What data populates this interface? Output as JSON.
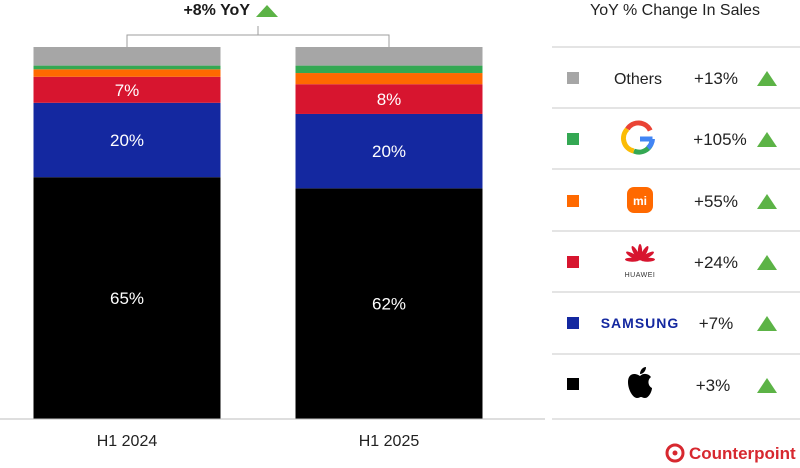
{
  "chart_data": {
    "type": "bar",
    "stacked": true,
    "categories": [
      "H1 2024",
      "H1 2025"
    ],
    "series": [
      {
        "name": "Apple",
        "color": "#000000",
        "values": [
          65,
          62
        ],
        "labels": [
          "65%",
          "62%"
        ]
      },
      {
        "name": "Samsung",
        "color": "#1428a0",
        "values": [
          20,
          20
        ],
        "labels": [
          "20%",
          "20%"
        ]
      },
      {
        "name": "Huawei",
        "color": "#d7152f",
        "values": [
          7,
          8
        ],
        "labels": [
          "7%",
          "8%"
        ]
      },
      {
        "name": "Xiaomi",
        "color": "#ff6900",
        "values": [
          2,
          3
        ],
        "labels": [
          "",
          ""
        ]
      },
      {
        "name": "Google",
        "color": "#34a853",
        "values": [
          1,
          2
        ],
        "labels": [
          "",
          ""
        ]
      },
      {
        "name": "Others",
        "color": "#a6a6a6",
        "values": [
          5,
          5
        ],
        "labels": [
          "",
          ""
        ]
      }
    ],
    "total_change": "+8% YoY",
    "ylim": [
      0,
      100
    ]
  },
  "legend": {
    "title": "YoY % Change In Sales",
    "items": [
      {
        "brand": "Others",
        "brand_text": "Others",
        "icon": "text",
        "color": "#a6a6a6",
        "change": "+13%",
        "trend": "up"
      },
      {
        "brand": "Google",
        "brand_text": "G",
        "icon": "google-logo",
        "color": "#34a853",
        "change": "+105%",
        "trend": "up"
      },
      {
        "brand": "Xiaomi",
        "brand_text": "mi",
        "icon": "xiaomi-logo",
        "color": "#ff6900",
        "change": "+55%",
        "trend": "up"
      },
      {
        "brand": "Huawei",
        "brand_text": "HUAWEI",
        "icon": "huawei-logo",
        "color": "#d7152f",
        "change": "+24%",
        "trend": "up"
      },
      {
        "brand": "Samsung",
        "brand_text": "SAMSUNG",
        "icon": "samsung-logo",
        "color": "#1428a0",
        "change": "+7%",
        "trend": "up"
      },
      {
        "brand": "Apple",
        "brand_text": "",
        "icon": "apple-logo",
        "color": "#000000",
        "change": "+3%",
        "trend": "up"
      }
    ]
  },
  "colors": {
    "trend_up": "#5cb346",
    "brand_red": "#d7282f",
    "axis": "#bdbdbd"
  },
  "watermark": "Counterpoint",
  "footer_brand": "Counterpoint"
}
